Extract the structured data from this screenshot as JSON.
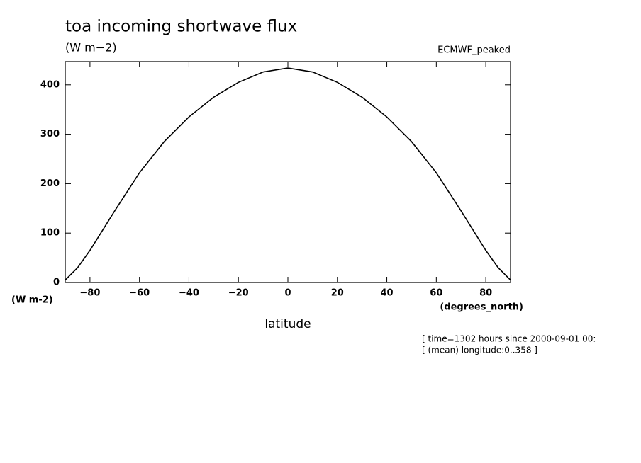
{
  "chart_data": {
    "type": "line",
    "title": "toa incoming shortwave flux",
    "subtitle": "(W m−2)",
    "dataset": "ECMWF_peaked",
    "y_units": "(W m-2)",
    "x_units": "(degrees_north)",
    "x_label": "latitude",
    "notes": [
      "[ time=1302 hours since 2000-09-01 00:",
      "[ (mean) longitude:0..358 ]"
    ],
    "x": [
      -90,
      -85,
      -80,
      -70,
      -60,
      -50,
      -40,
      -30,
      -20,
      -10,
      0,
      10,
      20,
      30,
      40,
      50,
      60,
      70,
      80,
      85,
      90
    ],
    "series": [
      {
        "name": "toa incoming shortwave flux",
        "color": "#000000",
        "values": [
          5,
          30,
          65,
          145,
          222,
          285,
          335,
          375,
          405,
          426,
          434,
          426,
          405,
          375,
          335,
          285,
          222,
          145,
          65,
          30,
          5
        ]
      }
    ],
    "xlim": [
      -90,
      90
    ],
    "ylim": [
      0,
      447
    ],
    "xticks": [
      {
        "value": -80,
        "label": "−80"
      },
      {
        "value": -60,
        "label": "−60"
      },
      {
        "value": -40,
        "label": "−40"
      },
      {
        "value": -20,
        "label": "−20"
      },
      0,
      20,
      40,
      60,
      80
    ],
    "yticks": [
      0,
      100,
      200,
      300,
      400
    ]
  }
}
